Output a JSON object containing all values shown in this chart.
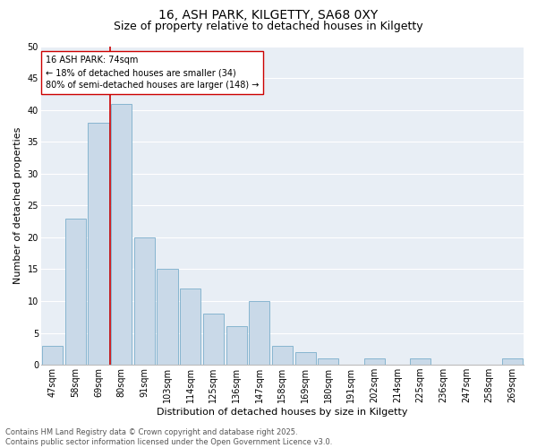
{
  "title1": "16, ASH PARK, KILGETTY, SA68 0XY",
  "title2": "Size of property relative to detached houses in Kilgetty",
  "xlabel": "Distribution of detached houses by size in Kilgetty",
  "ylabel": "Number of detached properties",
  "categories": [
    "47sqm",
    "58sqm",
    "69sqm",
    "80sqm",
    "91sqm",
    "103sqm",
    "114sqm",
    "125sqm",
    "136sqm",
    "147sqm",
    "158sqm",
    "169sqm",
    "180sqm",
    "191sqm",
    "202sqm",
    "214sqm",
    "225sqm",
    "236sqm",
    "247sqm",
    "258sqm",
    "269sqm"
  ],
  "values": [
    3,
    23,
    38,
    41,
    20,
    15,
    12,
    8,
    6,
    10,
    3,
    2,
    1,
    0,
    1,
    0,
    1,
    0,
    0,
    0,
    1
  ],
  "bar_color": "#c9d9e8",
  "bar_edge_color": "#7aaecb",
  "vline_color": "#cc0000",
  "annotation_text": "16 ASH PARK: 74sqm\n← 18% of detached houses are smaller (34)\n80% of semi-detached houses are larger (148) →",
  "ylim": [
    0,
    50
  ],
  "yticks": [
    0,
    5,
    10,
    15,
    20,
    25,
    30,
    35,
    40,
    45,
    50
  ],
  "background_color": "#e8eef5",
  "grid_color": "#ffffff",
  "footer_text": "Contains HM Land Registry data © Crown copyright and database right 2025.\nContains public sector information licensed under the Open Government Licence v3.0.",
  "title_fontsize": 10,
  "subtitle_fontsize": 9,
  "axis_label_fontsize": 8,
  "tick_fontsize": 7,
  "annotation_fontsize": 7,
  "footer_fontsize": 6
}
